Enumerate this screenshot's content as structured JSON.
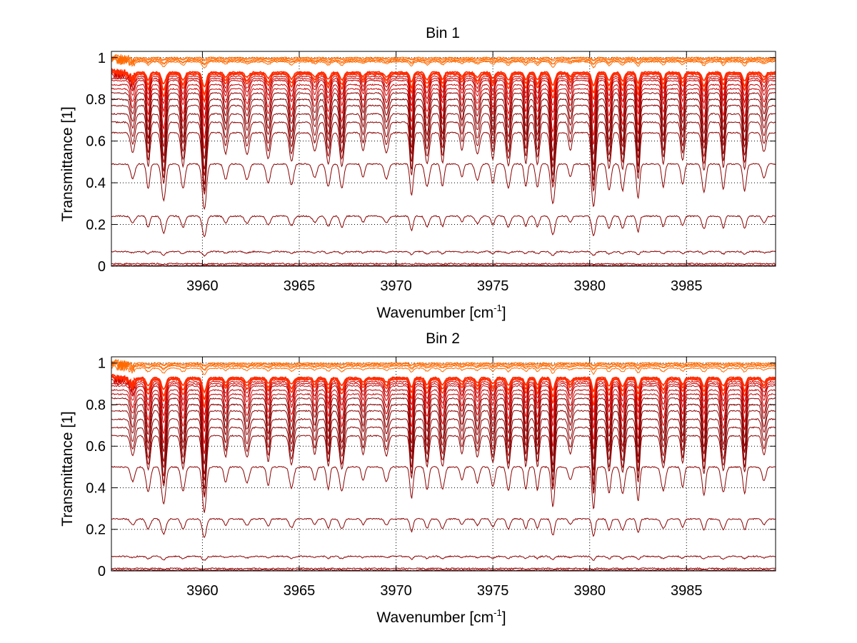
{
  "chart_data": [
    {
      "type": "line",
      "title": "Bin 1",
      "xlabel_main": "Wavenumber [cm",
      "xlabel_sup": "-1",
      "xlabel_end": "]",
      "ylabel": "Transmittance [1]",
      "xlim": [
        3955.3,
        3989.6
      ],
      "ylim": [
        0,
        1.03
      ],
      "xticks": [
        3960,
        3965,
        3970,
        3975,
        3980,
        3985
      ],
      "yticks": [
        0,
        0.2,
        0.4,
        0.6,
        0.8,
        1
      ],
      "grid": true,
      "colors": {
        "dark": "#8b0000",
        "mid": "#c80000",
        "bright": "#ff2a00",
        "top": "#ff6a00",
        "accent": "#f0a000"
      },
      "series": [
        {
          "base": 1.0,
          "depth": 0.01
        },
        {
          "base": 0.995,
          "depth": 0.01
        },
        {
          "base": 0.99,
          "depth": 0.02
        },
        {
          "base": 0.985,
          "depth": 0.02
        },
        {
          "base": 0.98,
          "depth": 0.03
        },
        {
          "base": 0.93,
          "depth": 0.07
        },
        {
          "base": 0.925,
          "depth": 0.1
        },
        {
          "base": 0.92,
          "depth": 0.13
        },
        {
          "base": 0.91,
          "depth": 0.16
        },
        {
          "base": 0.9,
          "depth": 0.19
        },
        {
          "base": 0.89,
          "depth": 0.22
        },
        {
          "base": 0.87,
          "depth": 0.26
        },
        {
          "base": 0.85,
          "depth": 0.29
        },
        {
          "base": 0.83,
          "depth": 0.32
        },
        {
          "base": 0.8,
          "depth": 0.34
        },
        {
          "base": 0.77,
          "depth": 0.34
        },
        {
          "base": 0.73,
          "depth": 0.34
        },
        {
          "base": 0.69,
          "depth": 0.33
        },
        {
          "base": 0.64,
          "depth": 0.3
        },
        {
          "base": 0.49,
          "depth": 0.22
        },
        {
          "base": 0.24,
          "depth": 0.1
        },
        {
          "base": 0.07,
          "depth": 0.02
        },
        {
          "base": 0.012,
          "depth": 0.004
        },
        {
          "base": 0.004,
          "depth": 0.001
        }
      ]
    },
    {
      "type": "line",
      "title": "Bin 2",
      "xlabel_main": "Wavenumber [cm",
      "xlabel_sup": "-1",
      "xlabel_end": "]",
      "ylabel": "Transmittance [1]",
      "xlim": [
        3955.3,
        3989.6
      ],
      "ylim": [
        0,
        1.03
      ],
      "xticks": [
        3960,
        3965,
        3970,
        3975,
        3980,
        3985
      ],
      "yticks": [
        0,
        0.2,
        0.4,
        0.6,
        0.8,
        1
      ],
      "grid": true,
      "colors": {
        "dark": "#8b0000",
        "mid": "#c80000",
        "bright": "#ff2a00",
        "top": "#ff6a00",
        "accent": "#f0a000"
      },
      "series": [
        {
          "base": 1.0,
          "depth": 0.01
        },
        {
          "base": 0.995,
          "depth": 0.01
        },
        {
          "base": 0.99,
          "depth": 0.02
        },
        {
          "base": 0.985,
          "depth": 0.02
        },
        {
          "base": 0.975,
          "depth": 0.03
        },
        {
          "base": 0.93,
          "depth": 0.07
        },
        {
          "base": 0.925,
          "depth": 0.1
        },
        {
          "base": 0.92,
          "depth": 0.13
        },
        {
          "base": 0.91,
          "depth": 0.16
        },
        {
          "base": 0.9,
          "depth": 0.19
        },
        {
          "base": 0.89,
          "depth": 0.22
        },
        {
          "base": 0.87,
          "depth": 0.26
        },
        {
          "base": 0.85,
          "depth": 0.29
        },
        {
          "base": 0.83,
          "depth": 0.32
        },
        {
          "base": 0.8,
          "depth": 0.34
        },
        {
          "base": 0.77,
          "depth": 0.34
        },
        {
          "base": 0.73,
          "depth": 0.34
        },
        {
          "base": 0.69,
          "depth": 0.33
        },
        {
          "base": 0.65,
          "depth": 0.3
        },
        {
          "base": 0.5,
          "depth": 0.22
        },
        {
          "base": 0.25,
          "depth": 0.09
        },
        {
          "base": 0.07,
          "depth": 0.02
        },
        {
          "base": 0.012,
          "depth": 0.004
        },
        {
          "base": 0.004,
          "depth": 0.001
        }
      ]
    }
  ]
}
